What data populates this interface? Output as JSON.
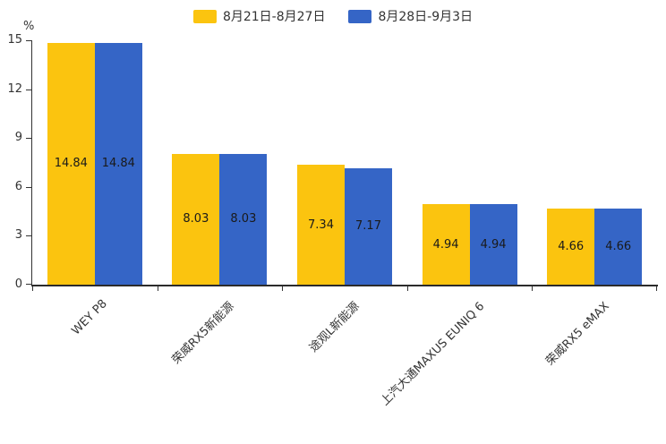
{
  "legend": [
    {
      "label": "8月21日-8月27日",
      "color": "#FBC40F"
    },
    {
      "label": "8月28日-9月3日",
      "color": "#3565C6"
    }
  ],
  "y_axis": {
    "unit": "%",
    "ticks": [
      0,
      3,
      6,
      9,
      12,
      15
    ]
  },
  "chart_data": {
    "type": "bar",
    "categories": [
      "WEY P8",
      "荣威RX5新能源",
      "途观L新能源",
      "上汽大通MAXUS EUNIQ 6",
      "荣威RX5 eMAX"
    ],
    "series": [
      {
        "name": "8月21日-8月27日",
        "color": "#FBC40F",
        "values": [
          14.84,
          8.03,
          7.34,
          4.94,
          4.66
        ]
      },
      {
        "name": "8月28日-9月3日",
        "color": "#3565C6",
        "values": [
          14.84,
          8.03,
          7.17,
          4.94,
          4.66
        ]
      }
    ],
    "title": "",
    "xlabel": "",
    "ylabel": "%",
    "ylim": [
      0,
      15
    ],
    "grid": false,
    "legend_position": "top",
    "value_labels": "inside-center"
  }
}
